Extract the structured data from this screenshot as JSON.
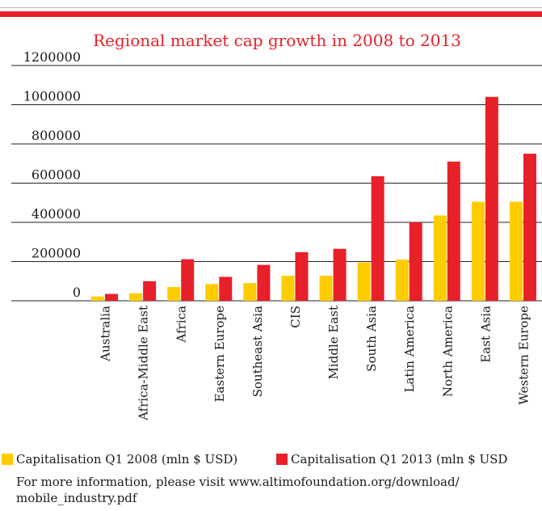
{
  "chart_data": {
    "type": "bar",
    "title": "Regional market cap growth in 2008 to 2013",
    "xlabel": "",
    "ylabel": "",
    "ylim": [
      0,
      1200000
    ],
    "yticks": [
      "0",
      "200000",
      "400000",
      "600000",
      "800000",
      "1000000",
      "1200000"
    ],
    "grid": true,
    "legend_position": "bottom",
    "categories": [
      "Australia",
      "Africa-Middle East",
      "Africa",
      "Eastern Europe",
      "Southeast Asia",
      "CIS",
      "Middle East",
      "South Asia",
      "Latin America",
      "North America",
      "East Asia",
      "Western Europe"
    ],
    "series": [
      {
        "name": "Capitalisation Q1 2008 (mln $ USD)",
        "color": "#ffcc00",
        "values": [
          22000,
          38000,
          70000,
          85000,
          90000,
          128000,
          128000,
          195000,
          210000,
          435000,
          505000,
          505000
        ]
      },
      {
        "name": "Capitalisation Q1 2013 (mln $ USD",
        "color": "#e8202a",
        "values": [
          35000,
          100000,
          212000,
          122000,
          183000,
          248000,
          265000,
          635000,
          400000,
          710000,
          1040000,
          750000
        ]
      }
    ]
  },
  "footer": {
    "note": "For more information, please visit www.altimofoundation.org/download/ mobile_industry.pdf"
  },
  "colors": {
    "accent": "#e8202a",
    "title": "#e8202a"
  }
}
